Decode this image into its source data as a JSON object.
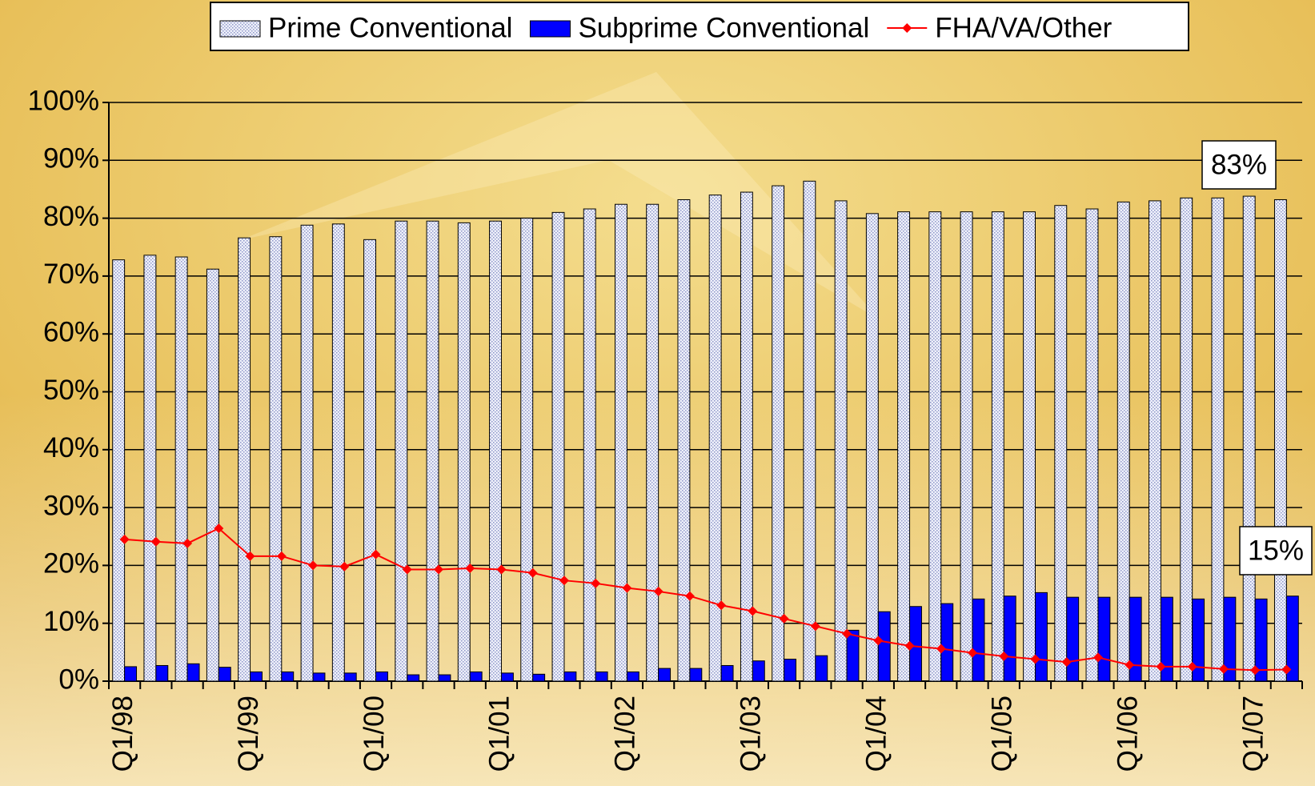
{
  "chart_data": {
    "type": "bar",
    "categories": [
      "Q1/98",
      null,
      null,
      null,
      "Q1/99",
      null,
      null,
      null,
      "Q1/00",
      null,
      null,
      null,
      "Q1/01",
      null,
      null,
      null,
      "Q1/02",
      null,
      null,
      null,
      "Q1/03",
      null,
      null,
      null,
      "Q1/04",
      null,
      null,
      null,
      "Q1/05",
      null,
      null,
      null,
      "Q1/06",
      null,
      null,
      null,
      "Q1/07",
      null
    ],
    "series": [
      {
        "name": "Prime Conventional",
        "type": "bar",
        "color": "#d6dbef",
        "values": [
          72.8,
          73.6,
          73.3,
          71.2,
          76.6,
          76.8,
          78.8,
          79.0,
          76.3,
          79.5,
          79.5,
          79.2,
          79.5,
          80.0,
          81.0,
          81.6,
          82.4,
          82.4,
          83.2,
          84.0,
          84.5,
          85.6,
          86.4,
          83.0,
          80.8,
          81.1,
          81.1,
          81.1,
          81.1,
          81.1,
          82.2,
          81.6,
          82.8,
          83.0,
          83.5,
          83.5,
          83.8,
          83.2
        ]
      },
      {
        "name": "Subprime Conventional",
        "type": "bar",
        "color": "#0000ff",
        "values": [
          2.5,
          2.7,
          3.0,
          2.4,
          1.6,
          1.6,
          1.4,
          1.4,
          1.6,
          1.1,
          1.1,
          1.6,
          1.4,
          1.2,
          1.6,
          1.6,
          1.6,
          2.2,
          2.2,
          2.7,
          3.5,
          3.8,
          4.4,
          8.8,
          12.0,
          12.9,
          13.4,
          14.2,
          14.7,
          15.3,
          14.5,
          14.5,
          14.5,
          14.5,
          14.2,
          14.5,
          14.2,
          14.7
        ]
      },
      {
        "name": "FHA/VA/Other",
        "type": "line",
        "color": "#ff0000",
        "values": [
          24.5,
          24.1,
          23.8,
          26.4,
          21.6,
          21.6,
          20.0,
          19.8,
          21.9,
          19.3,
          19.3,
          19.5,
          19.3,
          18.7,
          17.4,
          16.9,
          16.1,
          15.5,
          14.7,
          13.1,
          12.1,
          10.8,
          9.5,
          8.2,
          7.0,
          6.1,
          5.6,
          4.9,
          4.3,
          3.8,
          3.3,
          4.1,
          2.8,
          2.5,
          2.5,
          2.1,
          1.9,
          2.0
        ]
      }
    ],
    "ylim": [
      0,
      100
    ],
    "yticks": [
      {
        "value": 0,
        "label": "0%"
      },
      {
        "value": 10,
        "label": "10%"
      },
      {
        "value": 20,
        "label": "20%"
      },
      {
        "value": 30,
        "label": "30%"
      },
      {
        "value": 40,
        "label": "40%"
      },
      {
        "value": 50,
        "label": "50%"
      },
      {
        "value": 60,
        "label": "60%"
      },
      {
        "value": 70,
        "label": "70%"
      },
      {
        "value": 80,
        "label": "80%"
      },
      {
        "value": 90,
        "label": "90%"
      },
      {
        "value": 100,
        "label": "100%"
      }
    ],
    "grid": true,
    "legend": "top",
    "annotations": [
      "83%",
      "15%"
    ]
  }
}
